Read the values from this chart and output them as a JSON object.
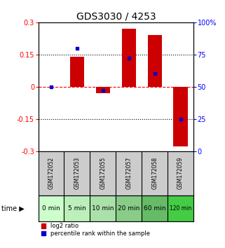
{
  "title": "GDS3030 / 4253",
  "samples": [
    "GSM172052",
    "GSM172053",
    "GSM172055",
    "GSM172057",
    "GSM172058",
    "GSM172059"
  ],
  "time_labels": [
    "0 min",
    "5 min",
    "10 min",
    "20 min",
    "60 min",
    "120 min"
  ],
  "log2_ratio": [
    0.0,
    0.14,
    -0.03,
    0.27,
    0.24,
    -0.28
  ],
  "percentile_rank": [
    50,
    80,
    47,
    72,
    60,
    25
  ],
  "bar_color": "#cc0000",
  "dot_color": "#0000cc",
  "ylim_left": [
    -0.3,
    0.3
  ],
  "ylim_right": [
    0,
    100
  ],
  "yticks_left": [
    -0.3,
    -0.15,
    0,
    0.15,
    0.3
  ],
  "yticks_right": [
    0,
    25,
    50,
    75,
    100
  ],
  "ytick_labels_left": [
    "-0.3",
    "-0.15",
    "0",
    "0.15",
    "0.3"
  ],
  "ytick_labels_right": [
    "0",
    "25",
    "50",
    "75",
    "100%"
  ],
  "dotted_lines": [
    -0.15,
    0.15
  ],
  "background_color": "#ffffff",
  "title_fontsize": 10,
  "tick_fontsize": 7,
  "bar_width": 0.55,
  "gray_color": "#cccccc",
  "green_shades": [
    "#ccffcc",
    "#bbf0bb",
    "#aae0aa",
    "#88cc88",
    "#66bb66",
    "#44cc44"
  ]
}
